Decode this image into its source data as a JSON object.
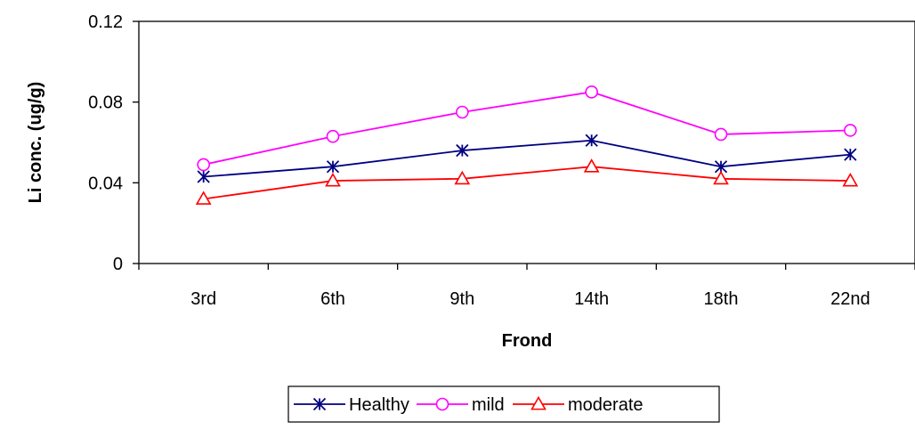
{
  "chart_data": {
    "type": "line",
    "categories": [
      "3rd",
      "6th",
      "9th",
      "14th",
      "18th",
      "22nd"
    ],
    "series": [
      {
        "name": "Healthy",
        "color": "#000080",
        "marker": "asterisk",
        "values": [
          0.043,
          0.048,
          0.056,
          0.061,
          0.048,
          0.054
        ]
      },
      {
        "name": "mild",
        "color": "#ff00ff",
        "marker": "circle",
        "values": [
          0.049,
          0.063,
          0.075,
          0.085,
          0.064,
          0.066
        ]
      },
      {
        "name": "moderate",
        "color": "#ff0000",
        "marker": "triangle",
        "values": [
          0.032,
          0.041,
          0.042,
          0.048,
          0.042,
          0.041
        ]
      }
    ],
    "xlabel": "Frond",
    "ylabel": "Li conc. (ug/g)",
    "ylim": [
      0,
      0.12
    ],
    "yticks": [
      "0",
      "0.04",
      "0.08",
      "0.12"
    ],
    "grid": false,
    "legend_position": "bottom"
  }
}
